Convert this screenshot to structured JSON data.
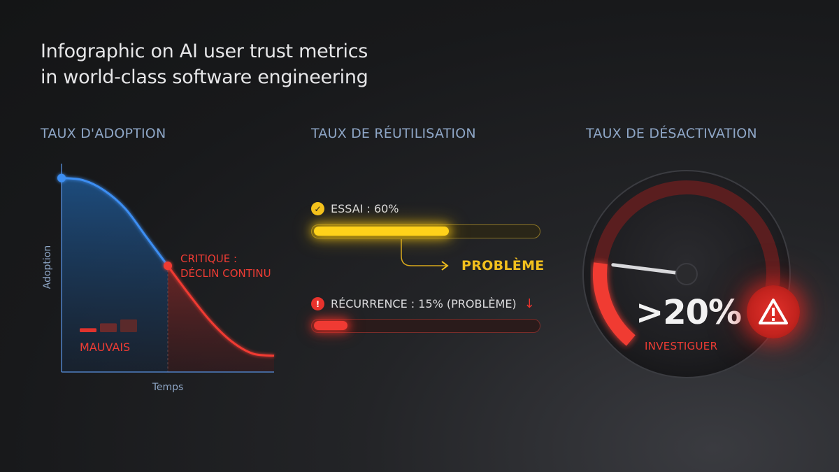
{
  "title": {
    "line1": "Infographic on AI user trust metrics",
    "line2": "in world-class software engineering"
  },
  "sections": {
    "adoption": "TAUX D'ADOPTION",
    "reuse": "TAUX DE RÉUTILISATION",
    "deactivation": "TAUX DE DÉSACTIVATION"
  },
  "colors": {
    "blue": "#3d8ef2",
    "red": "#f03a33",
    "yellow": "#ffd21a",
    "heading": "#8ea6c6"
  },
  "chart_data": [
    {
      "type": "area",
      "title": "TAUX D'ADOPTION",
      "xlabel": "Temps",
      "ylabel": "Adoption",
      "x": [
        0,
        1,
        2,
        3,
        4,
        5,
        6,
        7,
        8,
        9,
        10
      ],
      "y": [
        95,
        94,
        89,
        80,
        66,
        52,
        38,
        25,
        15,
        9,
        8
      ],
      "xlim": [
        0,
        10
      ],
      "ylim": [
        0,
        100
      ],
      "grid": false,
      "highlight_points": [
        {
          "x": 0,
          "y": 95,
          "color": "blue"
        },
        {
          "x": 5,
          "y": 52,
          "color": "red",
          "label_line1": "CRITIQUE :",
          "label_line2": "DÉCLIN CONTINU"
        }
      ],
      "segments": [
        {
          "from_x": 0,
          "to_x": 5,
          "color": "blue"
        },
        {
          "from_x": 5,
          "to_x": 10,
          "color": "red"
        }
      ],
      "mini_bars": [
        0.2,
        0.45,
        0.65
      ],
      "annotation": "MAUVAIS"
    },
    {
      "type": "bar",
      "title": "TAUX DE RÉUTILISATION",
      "orientation": "horizontal",
      "series": [
        {
          "name": "ESSAI : 60%",
          "value": 60,
          "color": "yellow",
          "status": "ok"
        },
        {
          "name": "RÉCURRENCE : 15% (PROBLÈME)",
          "value": 15,
          "color": "red",
          "status": "problem"
        }
      ],
      "xlim": [
        0,
        100
      ],
      "annotation": "PROBLÈME"
    },
    {
      "type": "gauge",
      "title": "TAUX DE DÉSACTIVATION",
      "value_label": ">20%",
      "value": 20,
      "needle_fraction": 0.22,
      "cta": "INVESTIGUER",
      "icon": "warning-icon"
    }
  ],
  "adoption": {
    "ylabel": "Adoption",
    "xlabel": "Temps",
    "critical_line1": "CRITIQUE :",
    "critical_line2": "DÉCLIN CONTINU",
    "bad": "MAUVAIS"
  },
  "reuse": {
    "trial_label": "ESSAI : 60%",
    "trial_value": 60,
    "problem": "PROBLÈME",
    "recurrence_label": "RÉCURRENCE : 15% (PROBLÈME)",
    "recurrence_value": 15,
    "check_icon": "check-icon",
    "alert_icon": "exclamation-icon",
    "down_arrow": "↓"
  },
  "gauge": {
    "value_label": ">20%",
    "cta": "INVESTIGUER"
  }
}
